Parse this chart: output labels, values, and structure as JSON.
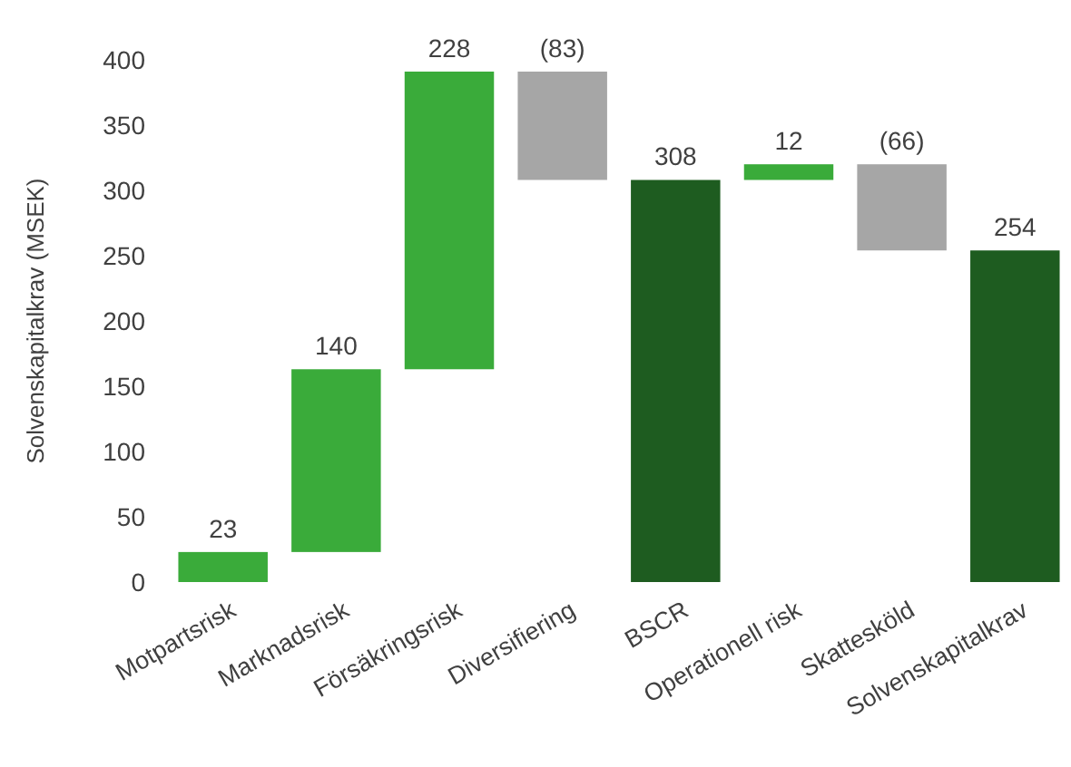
{
  "chart_data": {
    "type": "bar",
    "ylabel": "Solvenskapitalkrav (MSEK)",
    "categories": [
      "Motpartsrisk",
      "Marknadsrisk",
      "Försäkringsrisk",
      "Diversifiering",
      "BSCR",
      "Operationell risk",
      "Skattesköld",
      "Solvenskapitalkrav"
    ],
    "values": [
      23,
      140,
      228,
      -83,
      308,
      12,
      -66,
      254
    ],
    "base": [
      0,
      23,
      163,
      391,
      0,
      308,
      320,
      0
    ],
    "colors": [
      "#3aab3a",
      "#3aab3a",
      "#3aab3a",
      "#a6a6a6",
      "#1e5c20",
      "#3aab3a",
      "#a6a6a6",
      "#1e5c20"
    ],
    "value_labels": [
      "23",
      "140",
      "228",
      "(83)",
      "308",
      "12",
      "(66)",
      "254"
    ],
    "ylim": [
      0,
      400
    ],
    "yticks": [
      0,
      50,
      100,
      150,
      200,
      250,
      300,
      350,
      400
    ],
    "grid": false
  }
}
